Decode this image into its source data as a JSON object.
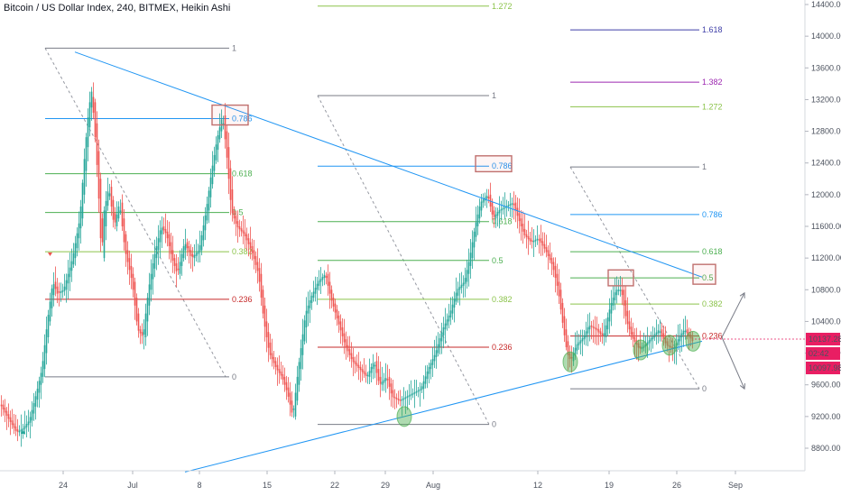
{
  "title": "Bitcoin / US Dollar Index, 240, BITMEX, Heikin Ashi",
  "price_tags": [
    {
      "value": "10137.28",
      "bg": "#e91e63"
    },
    {
      "value": "02:42",
      "bg": "#e91e63"
    },
    {
      "value": "10097.98",
      "bg": "#e91e63"
    }
  ],
  "chart_data": {
    "type": "candlestick",
    "title": "Bitcoin / US Dollar Index, 240, BITMEX, Heikin Ashi",
    "x_ticks": [
      "24",
      "Jul",
      "8",
      "15",
      "22",
      "29",
      "Aug",
      "12",
      "19",
      "26",
      "Sep"
    ],
    "y_ticks": [
      8800,
      9200,
      9600,
      10000,
      10400,
      10800,
      11200,
      11600,
      12000,
      12400,
      12800,
      13200,
      13600,
      14000,
      14400
    ],
    "ylim": [
      8550,
      14450
    ],
    "colors": {
      "up": "#26a69a",
      "down": "#ef5350",
      "trend": "#2196f3"
    },
    "price_path": [
      [
        0,
        9350
      ],
      [
        10,
        9150
      ],
      [
        18,
        9000
      ],
      [
        25,
        9050
      ],
      [
        32,
        9150
      ],
      [
        40,
        9500
      ],
      [
        46,
        9800
      ],
      [
        52,
        10400
      ],
      [
        58,
        10900
      ],
      [
        63,
        10750
      ],
      [
        70,
        10800
      ],
      [
        80,
        11200
      ],
      [
        88,
        11700
      ],
      [
        94,
        12600
      ],
      [
        98,
        13100
      ],
      [
        101,
        13300
      ],
      [
        104,
        12900
      ],
      [
        108,
        12200
      ],
      [
        112,
        11200
      ],
      [
        115,
        11800
      ],
      [
        120,
        12100
      ],
      [
        126,
        11600
      ],
      [
        132,
        11900
      ],
      [
        138,
        11300
      ],
      [
        146,
        10900
      ],
      [
        152,
        10300
      ],
      [
        158,
        10200
      ],
      [
        164,
        10800
      ],
      [
        170,
        11200
      ],
      [
        178,
        11600
      ],
      [
        184,
        11500
      ],
      [
        190,
        11200
      ],
      [
        196,
        11000
      ],
      [
        204,
        11400
      ],
      [
        212,
        11200
      ],
      [
        220,
        11300
      ],
      [
        228,
        11800
      ],
      [
        234,
        12300
      ],
      [
        240,
        12700
      ],
      [
        246,
        13000
      ],
      [
        250,
        12600
      ],
      [
        256,
        11800
      ],
      [
        262,
        11600
      ],
      [
        270,
        11500
      ],
      [
        278,
        11300
      ],
      [
        286,
        11000
      ],
      [
        292,
        10400
      ],
      [
        298,
        10000
      ],
      [
        306,
        9800
      ],
      [
        312,
        9700
      ],
      [
        318,
        9500
      ],
      [
        324,
        9200
      ],
      [
        330,
        9800
      ],
      [
        338,
        10500
      ],
      [
        344,
        10700
      ],
      [
        352,
        10900
      ],
      [
        360,
        11000
      ],
      [
        366,
        10700
      ],
      [
        374,
        10400
      ],
      [
        382,
        10100
      ],
      [
        390,
        9900
      ],
      [
        398,
        9800
      ],
      [
        406,
        9700
      ],
      [
        414,
        9900
      ],
      [
        420,
        9600
      ],
      [
        428,
        9700
      ],
      [
        434,
        9450
      ],
      [
        442,
        9400
      ],
      [
        450,
        9450
      ],
      [
        458,
        9500
      ],
      [
        466,
        9550
      ],
      [
        474,
        9800
      ],
      [
        482,
        10000
      ],
      [
        490,
        10300
      ],
      [
        498,
        10500
      ],
      [
        506,
        10800
      ],
      [
        514,
        10900
      ],
      [
        520,
        11200
      ],
      [
        526,
        11600
      ],
      [
        532,
        11900
      ],
      [
        540,
        12000
      ],
      [
        546,
        11700
      ],
      [
        552,
        11800
      ],
      [
        560,
        11850
      ],
      [
        568,
        11900
      ],
      [
        574,
        11700
      ],
      [
        580,
        11500
      ],
      [
        588,
        11400
      ],
      [
        596,
        11450
      ],
      [
        604,
        11300
      ],
      [
        612,
        11100
      ],
      [
        618,
        10800
      ],
      [
        624,
        10300
      ],
      [
        628,
        10000
      ],
      [
        632,
        9900
      ],
      [
        638,
        10100
      ],
      [
        646,
        10200
      ],
      [
        652,
        10350
      ],
      [
        660,
        10300
      ],
      [
        668,
        10200
      ],
      [
        676,
        10600
      ],
      [
        682,
        10800
      ],
      [
        688,
        10800
      ],
      [
        694,
        10400
      ],
      [
        700,
        10200
      ],
      [
        708,
        10050
      ],
      [
        714,
        10100
      ],
      [
        722,
        10200
      ],
      [
        730,
        10300
      ],
      [
        738,
        10100
      ],
      [
        746,
        10050
      ],
      [
        752,
        10200
      ],
      [
        758,
        10300
      ],
      [
        764,
        10200
      ],
      [
        768,
        10137
      ]
    ],
    "trendlines": [
      {
        "from": [
          83,
          13800
        ],
        "to": [
          778,
          10960
        ],
        "color": "#2196f3"
      },
      {
        "from": [
          205,
          8500
        ],
        "to": [
          778,
          10150
        ],
        "color": "#2196f3"
      }
    ],
    "fib_sets": [
      {
        "left": 50,
        "right": 254,
        "diag_from": [
          50,
          13850
        ],
        "diag_to": [
          250,
          9700
        ],
        "levels": [
          {
            "label": "1",
            "value": 13850,
            "color": "#787b86"
          },
          {
            "label": "0.786",
            "value": 12960,
            "color": "#2196f3"
          },
          {
            "label": "0.618",
            "value": 12265,
            "color": "#4caf50"
          },
          {
            "label": "0.5",
            "value": 11775,
            "color": "#4caf50"
          },
          {
            "label": "0.382",
            "value": 11280,
            "color": "#8bc34a"
          },
          {
            "label": "0.236",
            "value": 10680,
            "color": "#c62828"
          },
          {
            "label": "0",
            "value": 9700,
            "color": "#787b86"
          }
        ]
      },
      {
        "left": 352,
        "right": 542,
        "diag_from": [
          352,
          13250
        ],
        "diag_to": [
          542,
          9100
        ],
        "levels": [
          {
            "label": "1.272",
            "value": 14380,
            "color": "#8bc34a"
          },
          {
            "label": "1",
            "value": 13250,
            "color": "#787b86"
          },
          {
            "label": "0.786",
            "value": 12360,
            "color": "#2196f3"
          },
          {
            "label": "0.618",
            "value": 11660,
            "color": "#4caf50"
          },
          {
            "label": "0.5",
            "value": 11170,
            "color": "#4caf50"
          },
          {
            "label": "0.382",
            "value": 10680,
            "color": "#8bc34a"
          },
          {
            "label": "0.236",
            "value": 10075,
            "color": "#c62828"
          },
          {
            "label": "0",
            "value": 9100,
            "color": "#787b86"
          }
        ]
      },
      {
        "left": 632,
        "right": 775,
        "diag_from": [
          632,
          12350
        ],
        "diag_to": [
          775,
          9550
        ],
        "levels": [
          {
            "label": "1.618",
            "value": 14080,
            "color": "#3f3fa8"
          },
          {
            "label": "1.382",
            "value": 13420,
            "color": "#9c27b0"
          },
          {
            "label": "1.272",
            "value": 13110,
            "color": "#8bc34a"
          },
          {
            "label": "1",
            "value": 12350,
            "color": "#787b86"
          },
          {
            "label": "0.786",
            "value": 11750,
            "color": "#2196f3"
          },
          {
            "label": "0.618",
            "value": 11280,
            "color": "#4caf50"
          },
          {
            "label": "0.5",
            "value": 10950,
            "color": "#4caf50"
          },
          {
            "label": "0.382",
            "value": 10620,
            "color": "#8bc34a"
          },
          {
            "label": "0.236",
            "value": 10215,
            "color": "#c62828"
          },
          {
            "label": "0",
            "value": 9550,
            "color": "#787b86"
          }
        ]
      }
    ],
    "highlight_boxes": [
      {
        "x0": 235,
        "x1": 275,
        "v0": 13130,
        "v1": 12880
      },
      {
        "x0": 527,
        "x1": 567,
        "v0": 12490,
        "v1": 12290
      },
      {
        "x0": 674,
        "x1": 702,
        "v0": 11050,
        "v1": 10850
      },
      {
        "x0": 768,
        "x1": 793,
        "v0": 11120,
        "v1": 10870
      }
    ],
    "circles": [
      {
        "x": 448,
        "v": 9200
      },
      {
        "x": 632,
        "v": 9890
      },
      {
        "x": 710,
        "v": 10040
      },
      {
        "x": 742,
        "v": 10100
      },
      {
        "x": 768,
        "v": 10150
      }
    ],
    "projection_arrows": [
      {
        "from": [
          800,
          10200
        ],
        "to": [
          825,
          10760
        ]
      },
      {
        "from": [
          800,
          10200
        ],
        "to": [
          825,
          9550
        ]
      }
    ]
  }
}
